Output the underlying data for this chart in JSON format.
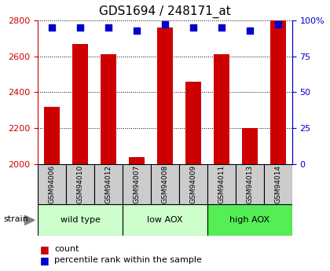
{
  "title": "GDS1694 / 248171_at",
  "samples": [
    "GSM94006",
    "GSM94010",
    "GSM94012",
    "GSM94007",
    "GSM94008",
    "GSM94009",
    "GSM94011",
    "GSM94013",
    "GSM94014"
  ],
  "counts": [
    2320,
    2670,
    2610,
    2040,
    2760,
    2460,
    2610,
    2200,
    2800
  ],
  "percentiles": [
    95,
    95,
    95,
    93,
    97,
    95,
    95,
    93,
    97
  ],
  "groups": [
    {
      "label": "wild type",
      "start": 0,
      "end": 3,
      "color": "#ccffcc"
    },
    {
      "label": "low AOX",
      "start": 3,
      "end": 6,
      "color": "#ccffcc"
    },
    {
      "label": "high AOX",
      "start": 6,
      "end": 9,
      "color": "#55ee55"
    }
  ],
  "ylim_left": [
    2000,
    2800
  ],
  "yticks_left": [
    2000,
    2200,
    2400,
    2600,
    2800
  ],
  "ylim_right": [
    0,
    100
  ],
  "yticks_right": [
    0,
    25,
    50,
    75,
    100
  ],
  "yticklabels_right": [
    "0",
    "25",
    "50",
    "75",
    "100%"
  ],
  "bar_color": "#cc0000",
  "dot_color": "#0000cc",
  "left_tick_color": "#cc0000",
  "right_tick_color": "#0000cc",
  "bar_width": 0.55,
  "dot_size": 30,
  "sample_box_color": "#cccccc",
  "strain_label": "strain",
  "legend_count_label": "count",
  "legend_pct_label": "percentile rank within the sample",
  "fig_width": 4.2,
  "fig_height": 3.45,
  "dpi": 100
}
